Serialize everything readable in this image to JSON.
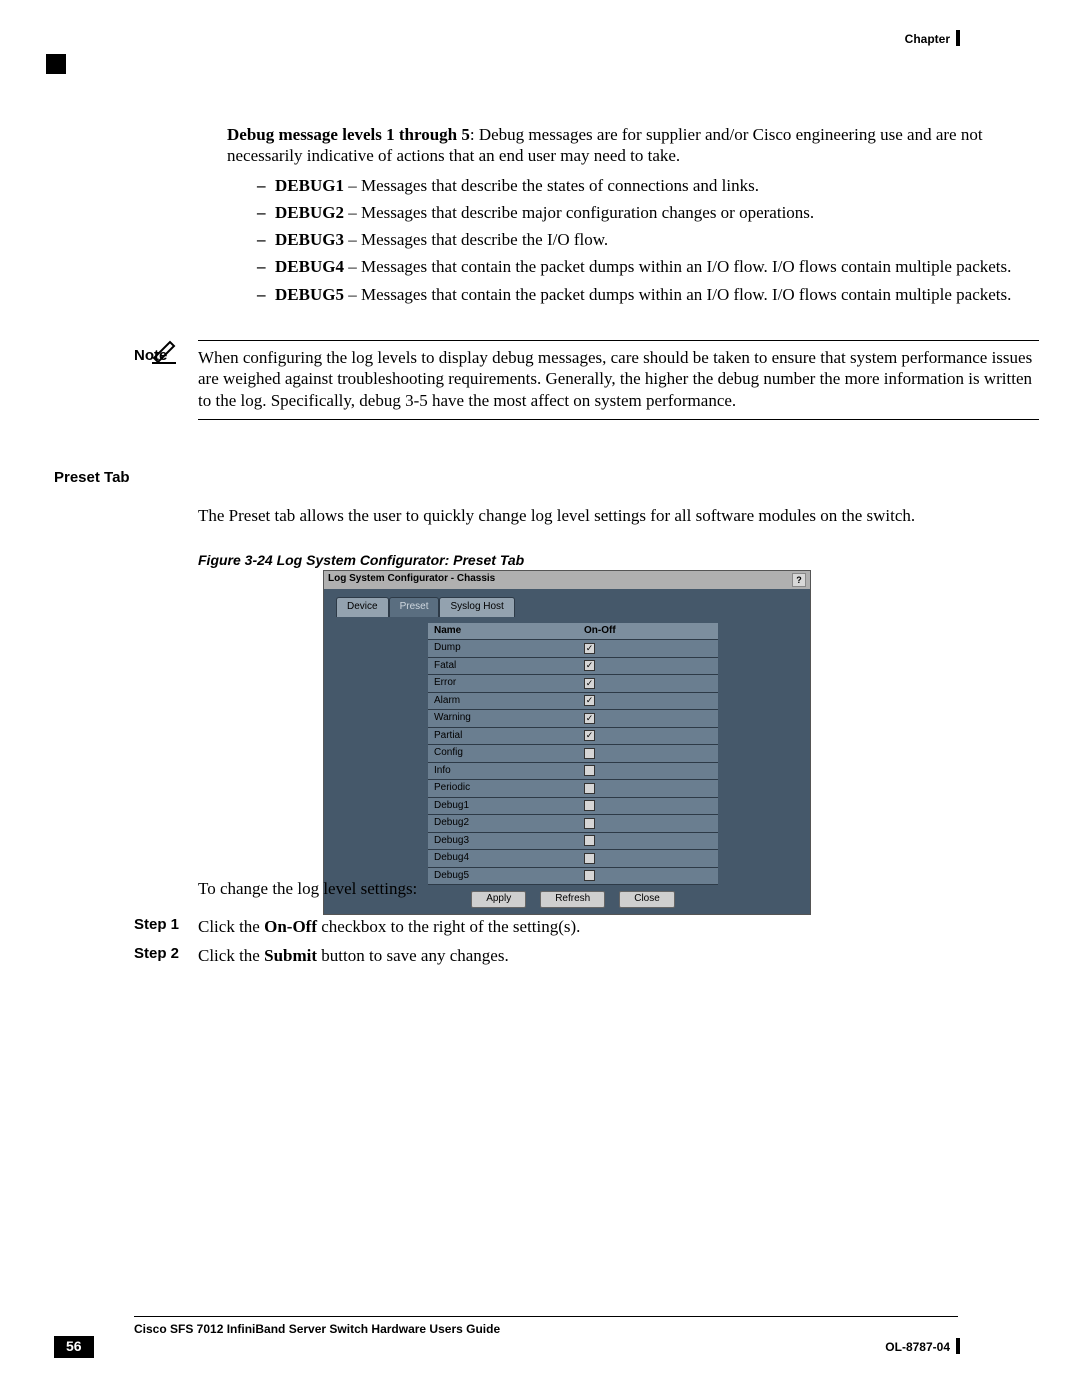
{
  "header": {
    "chapter": "Chapter"
  },
  "intro": {
    "lead_bold": "Debug message levels 1 through 5",
    "lead_rest": ": Debug messages are for supplier and/or Cisco engineering use and are not necessarily indicative of actions that an end user may need to take."
  },
  "debug_items": [
    {
      "label": "DEBUG1",
      "text": " – Messages that describe the states of connections and links."
    },
    {
      "label": "DEBUG2",
      "text": " – Messages that describe major configuration changes or operations."
    },
    {
      "label": "DEBUG3",
      "text": " – Messages that describe the I/O flow."
    },
    {
      "label": "DEBUG4",
      "text": " – Messages that contain the packet dumps within an I/O flow. I/O flows contain multiple packets."
    },
    {
      "label": "DEBUG5",
      "text": " – Messages that contain the packet dumps within an I/O flow. I/O flows contain multiple packets."
    }
  ],
  "note": {
    "label": "Note",
    "text": "When configuring the log levels to display debug messages, care should be taken to ensure that system performance issues are weighed against troubleshooting requirements. Generally, the higher the debug number the more information is written to the log. Specifically, debug 3-5 have the most affect on system performance."
  },
  "section": {
    "preset_tab": "Preset Tab"
  },
  "preset_intro": "The Preset tab allows the user to quickly change log level settings for all software modules on the switch.",
  "figure": {
    "caption": "Figure 3-24   Log System Configurator: Preset Tab",
    "window_title": "Log System Configurator - Chassis",
    "help": "?",
    "tabs": {
      "device": "Device",
      "preset": "Preset",
      "syslog": "Syslog Host"
    },
    "col_name": "Name",
    "col_onoff": "On-Off",
    "rows": [
      {
        "name": "Dump",
        "checked": true
      },
      {
        "name": "Fatal",
        "checked": true
      },
      {
        "name": "Error",
        "checked": true
      },
      {
        "name": "Alarm",
        "checked": true
      },
      {
        "name": "Warning",
        "checked": true
      },
      {
        "name": "Partial",
        "checked": true
      },
      {
        "name": "Config",
        "checked": false
      },
      {
        "name": "Info",
        "checked": false
      },
      {
        "name": "Periodic",
        "checked": false
      },
      {
        "name": "Debug1",
        "checked": false
      },
      {
        "name": "Debug2",
        "checked": false
      },
      {
        "name": "Debug3",
        "checked": false
      },
      {
        "name": "Debug4",
        "checked": false
      },
      {
        "name": "Debug5",
        "checked": false
      }
    ],
    "buttons": {
      "apply": "Apply",
      "refresh": "Refresh",
      "close": "Close"
    }
  },
  "after_fig": "To change the log level settings:",
  "steps": [
    {
      "label": "Step 1",
      "pre": "Click the ",
      "bold": "On-Off",
      "post": " checkbox to the right of the setting(s)."
    },
    {
      "label": "Step 2",
      "pre": "Click the ",
      "bold": "Submit",
      "post": " button to save any changes."
    }
  ],
  "footer": {
    "title": "Cisco SFS 7012 InfiniBand Server Switch Hardware Users Guide",
    "page": "56",
    "doc": "OL-8787-04"
  },
  "colors": {
    "figure_outer": "#b0b0b0",
    "figure_body": "#45586a",
    "row_hdr": "#7c8e9e",
    "row": "#6a7e90"
  }
}
